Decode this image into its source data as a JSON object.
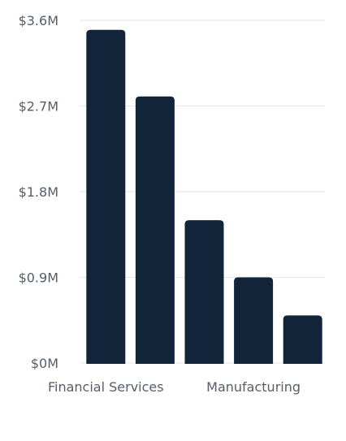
{
  "chart_data": {
    "type": "bar",
    "categories": [
      "Financial Services",
      "",
      "",
      "Manufacturing",
      ""
    ],
    "values": [
      3.5,
      2.8,
      1.5,
      0.9,
      0.5
    ],
    "y_ticks": [
      "$0M",
      "$0.9M",
      "$1.8M",
      "$2.7M",
      "$3.6M"
    ],
    "y_tick_values": [
      0,
      0.9,
      1.8,
      2.7,
      3.6
    ],
    "ylim": [
      0,
      3.6
    ],
    "title": "",
    "xlabel": "",
    "ylabel": "",
    "grid": true,
    "legend": "none",
    "colors": {
      "bar": "#11243a",
      "grid": "#e3e6ea",
      "text": "#555e6b"
    }
  }
}
